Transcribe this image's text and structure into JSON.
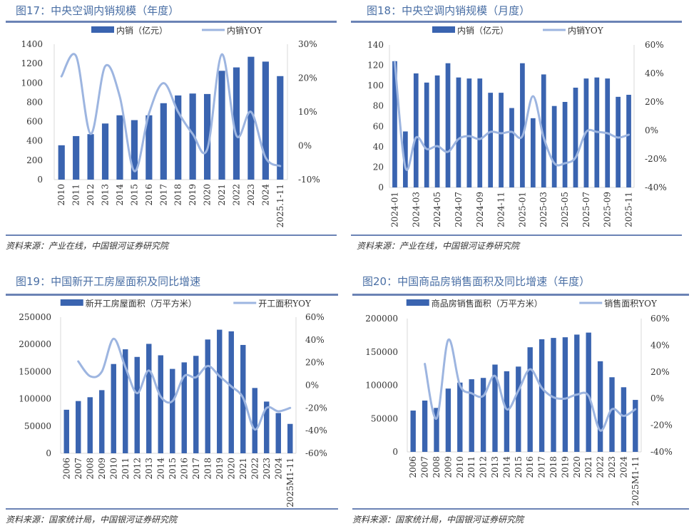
{
  "colors": {
    "bar": "#3a64b0",
    "line": "#9db5e0",
    "rule": "#6b83b5",
    "title": "#4a6fa5",
    "axis": "#d9d9d9"
  },
  "chart_data": [
    {
      "id": "fig17",
      "type": "bar+line",
      "title": "图17：中央空调内销规模（年度）",
      "source": "资料来源：产业在线，中国银河证券研究院",
      "legend": {
        "bar": "内销（亿元）",
        "line": "内销YOY",
        "position": "top"
      },
      "categories": [
        "2010",
        "2011",
        "2012",
        "2013",
        "2014",
        "2015",
        "2016",
        "2017",
        "2018",
        "2019",
        "2020",
        "2021",
        "2022",
        "2023",
        "2024",
        "2025.1-11"
      ],
      "series": [
        {
          "name": "内销（亿元）",
          "type": "bar",
          "axis": "left",
          "values": [
            355,
            450,
            470,
            580,
            665,
            615,
            665,
            790,
            870,
            890,
            885,
            1125,
            1160,
            1270,
            1220,
            1070
          ]
        },
        {
          "name": "内销YOY",
          "type": "line",
          "axis": "right",
          "values": [
            20.5,
            26.5,
            3.5,
            23.5,
            14.5,
            -7.5,
            9.5,
            18.5,
            10.0,
            3.5,
            -1.0,
            27.0,
            3.0,
            10.0,
            -3.5,
            -6.0
          ]
        }
      ],
      "yleft": {
        "min": 0,
        "max": 1400,
        "ticks": [
          "0",
          "200",
          "400",
          "600",
          "800",
          "1000",
          "1200",
          "1400"
        ]
      },
      "yright": {
        "min": -10,
        "max": 30,
        "ticks": [
          "-10%",
          "0%",
          "10%",
          "20%",
          "30%"
        ]
      }
    },
    {
      "id": "fig18",
      "type": "bar+line",
      "title": "图18：中央空调内销规模（月度）",
      "source": "资料来源：产业在线，中国银河证券研究院",
      "legend": {
        "bar": "内销（亿元）",
        "line": "内销YOY",
        "position": "top"
      },
      "categories": [
        "2024-01",
        "2024-02",
        "2024-03",
        "2024-04",
        "2024-05",
        "2024-06",
        "2024-07",
        "2024-08",
        "2024-09",
        "2024-10",
        "2024-11",
        "2024-12",
        "2025-01",
        "2025-02",
        "2025-03",
        "2025-04",
        "2025-05",
        "2025-06",
        "2025-07",
        "2025-08",
        "2025-09",
        "2025-10",
        "2025-11"
      ],
      "tick_labels": [
        "2024-01",
        "",
        "2024-03",
        "",
        "2024-05",
        "",
        "2024-07",
        "",
        "2024-09",
        "",
        "2024-11",
        "",
        "2025-01",
        "",
        "2025-03",
        "",
        "2025-05",
        "",
        "2025-07",
        "",
        "2025-09",
        "",
        "2025-11"
      ],
      "series": [
        {
          "name": "内销（亿元）",
          "type": "bar",
          "axis": "left",
          "values": [
            124,
            55,
            112,
            103,
            110,
            122,
            108,
            107,
            107,
            93,
            93,
            78,
            122,
            68,
            111,
            80,
            84,
            98,
            107,
            108,
            107,
            89,
            91
          ]
        },
        {
          "name": "内销YOY",
          "type": "line",
          "axis": "right",
          "values": [
            48,
            -26,
            -5,
            -13,
            -11,
            -15,
            -6,
            -4,
            -6,
            -1,
            -2,
            -1,
            -4,
            24,
            -5,
            -23,
            -23,
            -19,
            -1,
            -1,
            -2,
            -5,
            -3
          ]
        }
      ],
      "yleft": {
        "min": 0,
        "max": 140,
        "ticks": [
          "0",
          "20",
          "40",
          "60",
          "80",
          "100",
          "120",
          "140"
        ]
      },
      "yright": {
        "min": -40,
        "max": 60,
        "ticks": [
          "-40%",
          "-20%",
          "0%",
          "20%",
          "40%",
          "60%"
        ]
      }
    },
    {
      "id": "fig19",
      "type": "bar+line",
      "title": "图19：中国新开工房屋面积及同比增速",
      "source": "资料来源：国家统计局，中国银河证券研究院",
      "legend": {
        "bar": "新开工房屋面积（万平方米）",
        "line": "开工面积YOY",
        "position": "top"
      },
      "categories": [
        "2006",
        "2007",
        "2008",
        "2009",
        "2010",
        "2011",
        "2012",
        "2013",
        "2014",
        "2015",
        "2016",
        "2017",
        "2018",
        "2019",
        "2020",
        "2021",
        "2022",
        "2023",
        "2024",
        "2025M1-11"
      ],
      "series": [
        {
          "name": "新开工房屋面积（万平方米）",
          "type": "bar",
          "axis": "left",
          "values": [
            80000,
            96000,
            103000,
            116000,
            164000,
            191000,
            177000,
            201000,
            180000,
            155000,
            167000,
            179000,
            209000,
            227000,
            224000,
            199000,
            120000,
            95000,
            74000,
            54000
          ]
        },
        {
          "name": "开工面积YOY",
          "type": "line",
          "axis": "right",
          "values": [
            null,
            21,
            8,
            12,
            41,
            16,
            -7,
            13,
            -10,
            -14,
            8,
            7,
            17,
            8,
            -1,
            -11,
            -39,
            -20,
            -23,
            -20
          ]
        }
      ],
      "yleft": {
        "min": 0,
        "max": 250000,
        "ticks": [
          "0",
          "50000",
          "100000",
          "150000",
          "200000",
          "250000"
        ]
      },
      "yright": {
        "min": -60,
        "max": 60,
        "ticks": [
          "-60%",
          "-40%",
          "-20%",
          "0%",
          "20%",
          "40%",
          "60%"
        ]
      }
    },
    {
      "id": "fig20",
      "type": "bar+line",
      "title": "图20：中国商品房销售面积及同比增速（年度）",
      "source": "资料来源：国家统计局，中国银河证券研究院",
      "legend": {
        "bar": "商品房销售面积（万平方米）",
        "line": "销售面积YOY",
        "position": "top"
      },
      "categories": [
        "2006",
        "2007",
        "2008",
        "2009",
        "2010",
        "2011",
        "2012",
        "2013",
        "2014",
        "2015",
        "2016",
        "2017",
        "2018",
        "2019",
        "2020",
        "2021",
        "2022",
        "2023",
        "2024",
        "2025M1-11"
      ],
      "series": [
        {
          "name": "商品房销售面积（万平方米）",
          "type": "bar",
          "axis": "left",
          "values": [
            62000,
            77000,
            66000,
            95000,
            104000,
            109000,
            111000,
            131000,
            121000,
            128000,
            157000,
            169000,
            171000,
            172000,
            176000,
            179000,
            136000,
            112000,
            97000,
            78000
          ]
        },
        {
          "name": "销售面积YOY",
          "type": "line",
          "axis": "right",
          "values": [
            null,
            26,
            -15,
            44,
            10,
            4,
            2,
            17,
            -8,
            6,
            22,
            8,
            1,
            0,
            3,
            2,
            -24,
            -8,
            -13,
            -8
          ]
        }
      ],
      "yleft": {
        "min": 0,
        "max": 200000,
        "ticks": [
          "0",
          "50000",
          "100000",
          "150000",
          "200000"
        ]
      },
      "yright": {
        "min": -40,
        "max": 60,
        "ticks": [
          "-40%",
          "-20%",
          "0%",
          "20%",
          "40%",
          "60%"
        ]
      }
    }
  ]
}
